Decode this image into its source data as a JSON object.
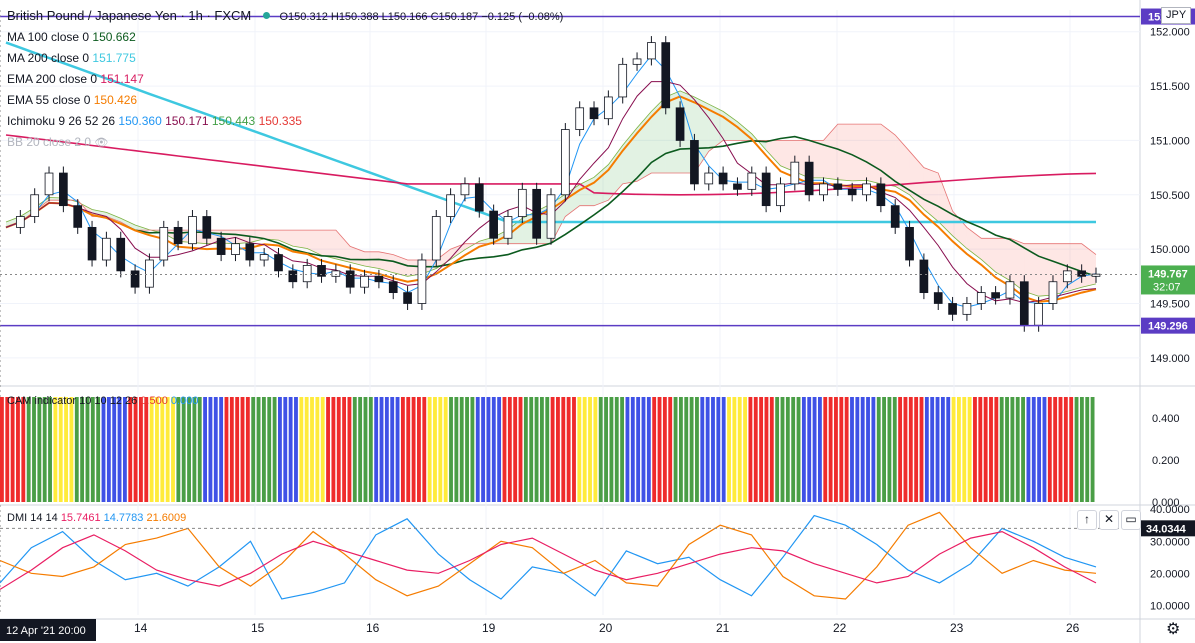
{
  "header": {
    "title": "British Pound / Japanese Yen · 1h · FXCM",
    "ohlc": "O150.312 H150.388 L150.166 C150.187 −0.125 (−0.08%)",
    "currency": "JPY"
  },
  "overlays": [
    {
      "name": "MA 100 close 0",
      "value": "150.662",
      "color": "#0b5a1e"
    },
    {
      "name": "MA 200 close 0",
      "value": "151.775",
      "color": "#3ec8e0"
    },
    {
      "name": "EMA 200 close 0",
      "value": "151.147",
      "color": "#d81b60"
    },
    {
      "name": "EMA 55 close 0",
      "value": "150.426",
      "color": "#f57c00"
    },
    {
      "name": "Ichimoku 9 26 52 26",
      "values": [
        "150.360",
        "150.171",
        "150.443",
        "150.335"
      ],
      "colors": [
        "#2196f3",
        "#880e4f",
        "#43a047",
        "#e53935"
      ]
    },
    {
      "name": "BB 20 close 2 0",
      "value": "",
      "color": "#b0b0b0"
    }
  ],
  "price_axis": {
    "ticks": [
      "152.000",
      "151.500",
      "151.000",
      "150.500",
      "150.000",
      "149.500",
      "149.000"
    ],
    "current": "149.767",
    "countdown": "32:07",
    "level_low": "149.296",
    "level_high_label": "152.14"
  },
  "cam": {
    "label": "CAM indicator 10 10 12 26",
    "v1": "0.500",
    "v2": "0.000",
    "ticks": [
      "0.400",
      "0.200",
      "0.000"
    ]
  },
  "dmi": {
    "label": "DMI 14 14",
    "v1": "15.7461",
    "v2": "14.7783",
    "v3": "21.6009",
    "ticks": [
      "40.0000",
      "30.0000",
      "20.0000",
      "10.0000"
    ],
    "current": "34.0344"
  },
  "time_axis": {
    "crosshair_label": "12 Apr '21  20:00",
    "ticks": [
      "14",
      "15",
      "16",
      "19",
      "20",
      "21",
      "22",
      "23",
      "26"
    ]
  },
  "chart_data": {
    "type": "candlestick",
    "instrument": "British Pound / Japanese Yen",
    "timeframe": "1h",
    "ylim": [
      148.75,
      152.2
    ],
    "horizontal_levels": [
      152.14,
      149.296
    ],
    "x_labels": [
      "14",
      "15",
      "16",
      "19",
      "20",
      "21",
      "22",
      "23",
      "26"
    ],
    "close_path": [
      150.2,
      150.3,
      150.5,
      150.7,
      150.4,
      150.2,
      149.9,
      150.1,
      149.8,
      149.65,
      149.9,
      150.2,
      150.05,
      150.3,
      150.1,
      149.95,
      150.05,
      149.9,
      149.95,
      149.8,
      149.7,
      149.85,
      149.75,
      149.8,
      149.65,
      149.75,
      149.7,
      149.6,
      149.5,
      149.9,
      150.3,
      150.5,
      150.6,
      150.35,
      150.1,
      150.3,
      150.55,
      150.1,
      150.5,
      151.1,
      151.3,
      151.2,
      151.4,
      151.7,
      151.75,
      151.9,
      151.3,
      151.0,
      150.6,
      150.7,
      150.6,
      150.55,
      150.7,
      150.4,
      150.6,
      150.8,
      150.5,
      150.6,
      150.55,
      150.5,
      150.6,
      150.4,
      150.2,
      149.9,
      149.6,
      149.5,
      149.4,
      149.5,
      149.6,
      149.55,
      149.7,
      149.3,
      149.5,
      149.7,
      149.8,
      149.75,
      149.77
    ],
    "cam_color_sequence": [
      "red",
      "green",
      "yellow",
      "green",
      "blue",
      "red",
      "yellow",
      "green",
      "blue",
      "red",
      "green",
      "blue",
      "yellow",
      "red",
      "green",
      "blue",
      "red",
      "yellow",
      "green",
      "blue",
      "red",
      "green",
      "red",
      "yellow",
      "green",
      "blue",
      "red",
      "green",
      "blue",
      "yellow",
      "red",
      "green",
      "blue",
      "red",
      "blue",
      "green",
      "red",
      "blue",
      "yellow",
      "red",
      "green",
      "blue",
      "red",
      "green"
    ],
    "dmi_series": [
      {
        "name": "+DI",
        "values": [
          17,
          28,
          33,
          24,
          18,
          20,
          16,
          22,
          30,
          12,
          14,
          17,
          32,
          37,
          26,
          18,
          12,
          22,
          20,
          13,
          27,
          23,
          25,
          18,
          13,
          25,
          38,
          35,
          29,
          21,
          17,
          23,
          34,
          30,
          25,
          22
        ]
      },
      {
        "name": "−DI",
        "values": [
          24,
          20,
          19,
          22,
          29,
          31,
          34,
          22,
          16,
          23,
          33,
          26,
          18,
          13,
          16,
          23,
          30,
          28,
          20,
          24,
          17,
          16,
          29,
          35,
          32,
          19,
          13,
          12,
          22,
          35,
          39,
          28,
          20,
          24,
          21,
          20
        ]
      },
      {
        "name": "ADX",
        "values": [
          15,
          21,
          28,
          32,
          27,
          21,
          18,
          16,
          20,
          26,
          30,
          27,
          24,
          21,
          20,
          24,
          29,
          31,
          26,
          21,
          18,
          20,
          23,
          26,
          28,
          27,
          23,
          20,
          17,
          19,
          26,
          31,
          33,
          28,
          22,
          17
        ]
      }
    ],
    "dmi_ylim": [
      7,
      41
    ],
    "cam_ylim": [
      0,
      0.5
    ]
  }
}
